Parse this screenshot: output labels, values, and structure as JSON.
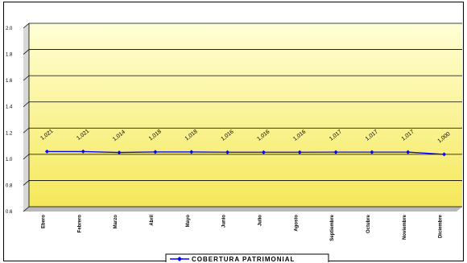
{
  "chart_data": {
    "type": "line",
    "title": "",
    "xlabel": "",
    "ylabel": "",
    "categories": [
      "Ebero",
      "Febrero",
      "Marzo",
      "Abril",
      "Mayo",
      "Junio",
      "Julio",
      "Agosto",
      "Septiembre",
      "Octubre",
      "Noviembre",
      "Diciembre"
    ],
    "series": [
      {
        "name": "COBERTURA PATRIMONIAL",
        "values": [
          1.021,
          1.021,
          1.014,
          1.018,
          1.018,
          1.016,
          1.016,
          1.016,
          1.017,
          1.017,
          1.017,
          1.0
        ],
        "labels": [
          "1,021",
          "1,021",
          "1,014",
          "1,018",
          "1,018",
          "1,016",
          "1,016",
          "1,016",
          "1,017",
          "1,017",
          "1,017",
          "1,000"
        ]
      }
    ],
    "ylim": [
      0.6,
      2.0
    ],
    "yticks": [
      "2.0",
      "1.8",
      "1.6",
      "1.4",
      "1.2",
      "1.0",
      "0.8",
      "0.6"
    ],
    "grid": true,
    "legend": "bottom-center",
    "colors": {
      "plot_bg_top": "#ffffd6",
      "plot_bg_bottom": "#f6e85a",
      "line": "#0000ff",
      "gridline": "#000000"
    }
  }
}
